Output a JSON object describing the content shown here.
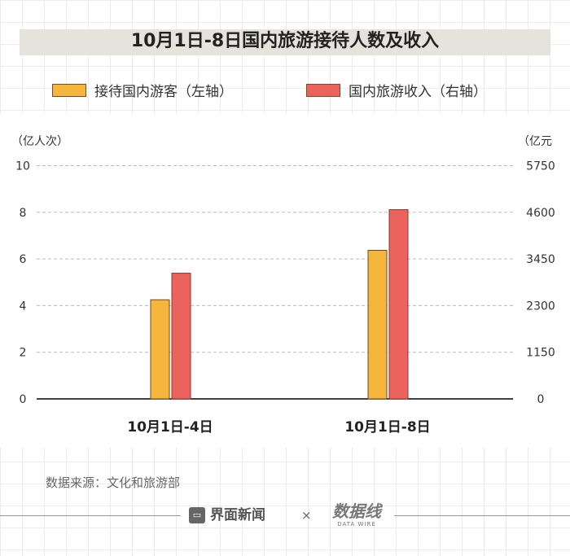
{
  "chart_data": {
    "type": "bar",
    "title": "10月1日-8日国内旅游接待人数及收入",
    "categories": [
      "10月1日-4日",
      "10月1日-8日"
    ],
    "series": [
      {
        "name": "接待国内游客（左轴）",
        "axis": "left",
        "color": "#f6b53d",
        "values": [
          4.25,
          6.37
        ]
      },
      {
        "name": "国内旅游收入（右轴）",
        "axis": "right",
        "color": "#ec625c",
        "values": [
          3100,
          4666
        ]
      }
    ],
    "y_left": {
      "label": "（亿人次）",
      "ylim": [
        0,
        10
      ],
      "ticks": [
        "0",
        "2",
        "4",
        "6",
        "8",
        "10"
      ]
    },
    "y_right": {
      "label": "（亿元",
      "ylim": [
        0,
        5750
      ],
      "ticks": [
        "0",
        "1150",
        "2300",
        "3450",
        "4600",
        "5750"
      ]
    },
    "grid": true,
    "legend": "top"
  },
  "source": "数据来源：文化和旅游部",
  "footer": {
    "brand": "界面新闻",
    "times": "×",
    "partner": "数据线",
    "partner_sub": "DATA WIRE"
  }
}
